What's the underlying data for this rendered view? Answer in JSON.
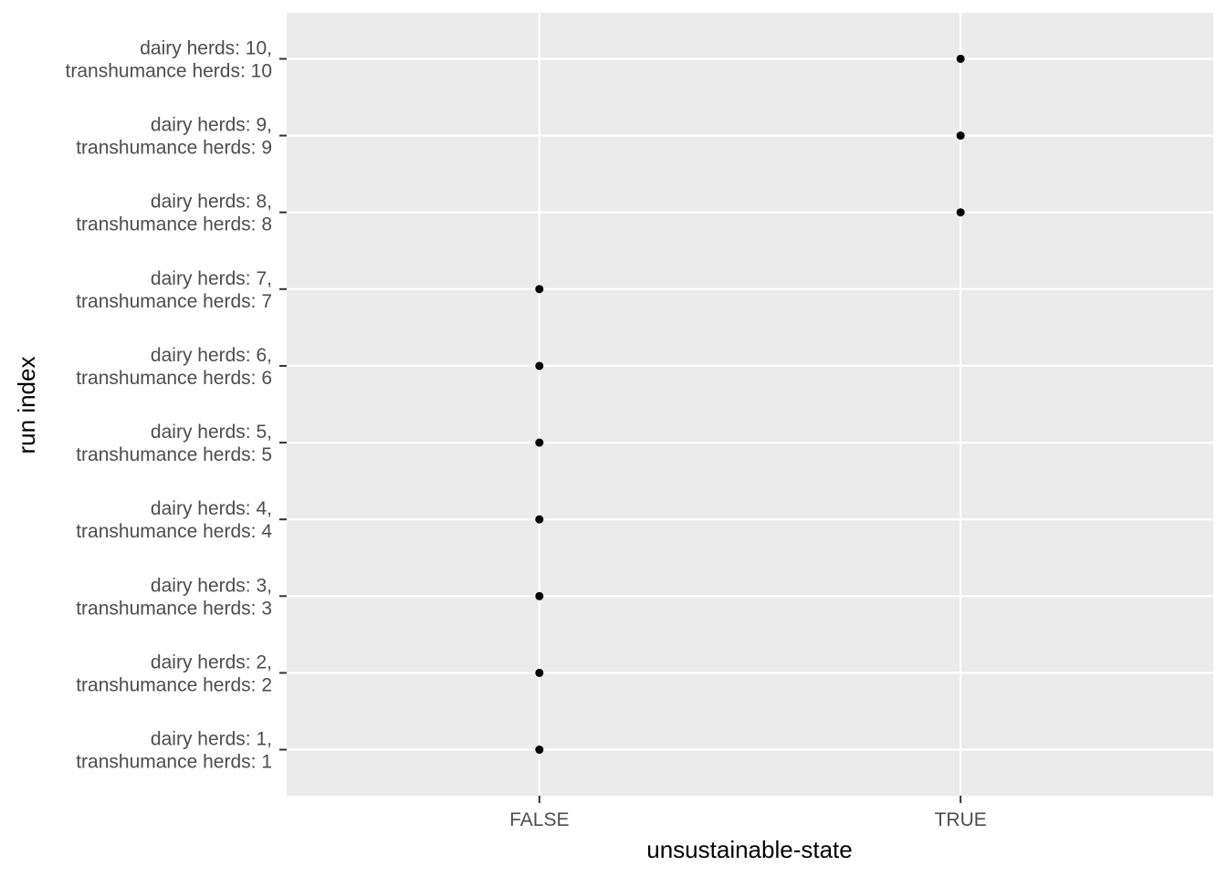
{
  "chart_data": {
    "type": "scatter",
    "xlabel": "unsustainable-state",
    "ylabel": "run index",
    "x_categories": [
      "FALSE",
      "TRUE"
    ],
    "y_categories": [
      [
        "dairy herds: 1,",
        "transhumance herds: 1"
      ],
      [
        "dairy herds: 2,",
        "transhumance herds: 2"
      ],
      [
        "dairy herds: 3,",
        "transhumance herds: 3"
      ],
      [
        "dairy herds: 4,",
        "transhumance herds: 4"
      ],
      [
        "dairy herds: 5,",
        "transhumance herds: 5"
      ],
      [
        "dairy herds: 6,",
        "transhumance herds: 6"
      ],
      [
        "dairy herds: 7,",
        "transhumance herds: 7"
      ],
      [
        "dairy herds: 8,",
        "transhumance herds: 8"
      ],
      [
        "dairy herds: 9,",
        "transhumance herds: 9"
      ],
      [
        "dairy herds: 10,",
        "transhumance herds: 10"
      ]
    ],
    "points": [
      {
        "run": 1,
        "x": "FALSE"
      },
      {
        "run": 2,
        "x": "FALSE"
      },
      {
        "run": 3,
        "x": "FALSE"
      },
      {
        "run": 4,
        "x": "FALSE"
      },
      {
        "run": 5,
        "x": "FALSE"
      },
      {
        "run": 6,
        "x": "FALSE"
      },
      {
        "run": 7,
        "x": "FALSE"
      },
      {
        "run": 8,
        "x": "TRUE"
      },
      {
        "run": 9,
        "x": "TRUE"
      },
      {
        "run": 10,
        "x": "TRUE"
      }
    ],
    "grid": true,
    "legend": "none",
    "colors": {
      "panel_background": "#ebebeb",
      "grid": "#ffffff",
      "point": "#000000",
      "tick_text": "#4d4d4d",
      "tick_mark": "#333333"
    }
  }
}
